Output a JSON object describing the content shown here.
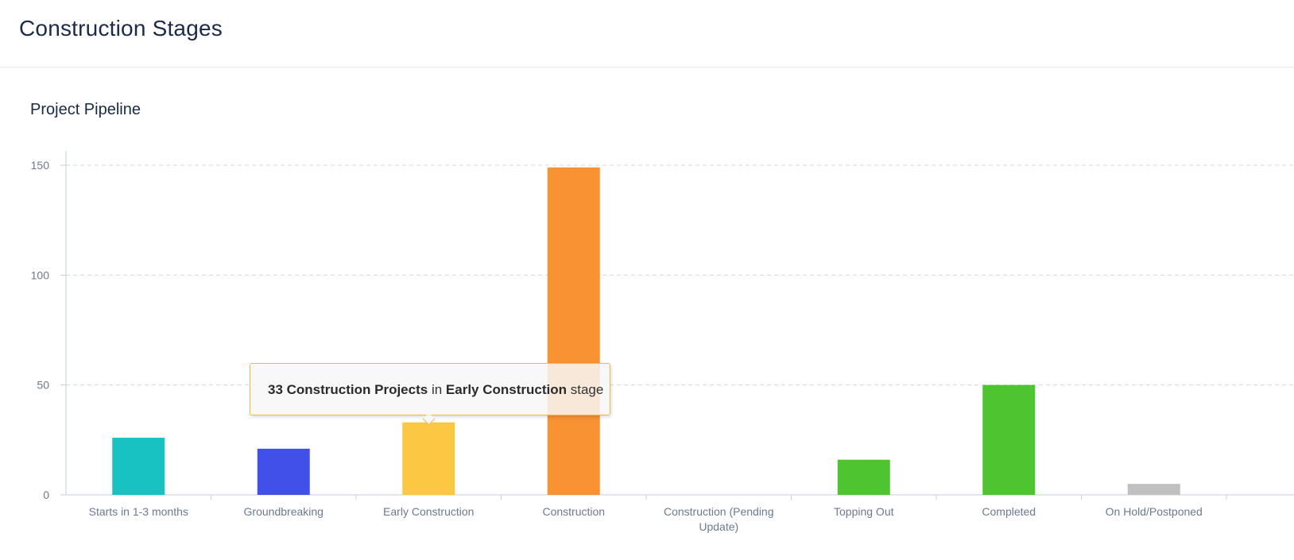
{
  "page": {
    "title": "Construction Stages"
  },
  "card": {
    "title": "Project Pipeline"
  },
  "tooltip": {
    "count_text": "33 Construction Projects",
    "in_text": "in",
    "stage_text": "Early Construction",
    "suffix_text": "stage"
  },
  "chart_data": {
    "type": "bar",
    "title": "Project Pipeline",
    "xlabel": "",
    "ylabel": "",
    "ylim": [
      0,
      150
    ],
    "yticks": [
      0,
      50,
      100,
      150
    ],
    "grid": true,
    "categories": [
      "Starts in 1-3 months",
      "Groundbreaking",
      "Early Construction",
      "Construction",
      "Construction (Pending Update)",
      "Topping Out",
      "Completed",
      "On Hold/Postponed"
    ],
    "category_lines": [
      [
        "Starts in 1-3 months"
      ],
      [
        "Groundbreaking"
      ],
      [
        "Early Construction"
      ],
      [
        "Construction"
      ],
      [
        "Construction (Pending",
        "Update)"
      ],
      [
        "Topping Out"
      ],
      [
        "Completed"
      ],
      [
        "On Hold/Postponed"
      ]
    ],
    "values": [
      26,
      21,
      33,
      149,
      0,
      16,
      50,
      5
    ],
    "colors": [
      "#19c2c2",
      "#4150e8",
      "#fcc843",
      "#f89233",
      "#cccccc",
      "#4ec431",
      "#4ec431",
      "#c0c0c0"
    ]
  }
}
